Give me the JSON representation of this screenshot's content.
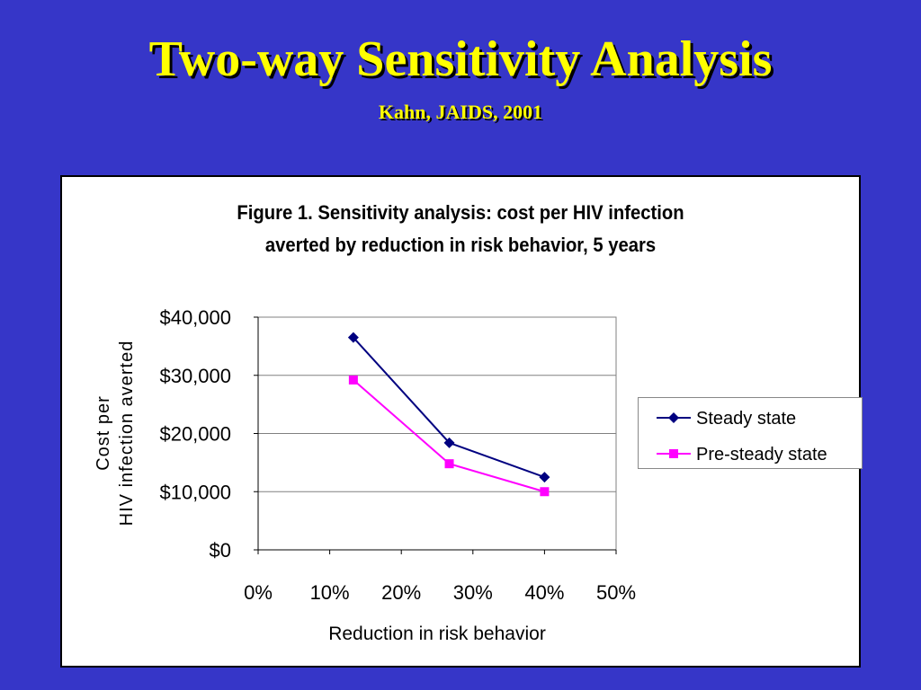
{
  "slide": {
    "title": "Two-way Sensitivity Analysis",
    "subtitle": "Kahn, JAIDS, 2001"
  },
  "chart_data": {
    "type": "line",
    "title_lines": [
      "Figure 1. Sensitivity analysis: cost per HIV infection",
      "averted by reduction in risk behavior, 5 years"
    ],
    "xlabel": "Reduction in risk behavior",
    "ylabel_lines": [
      "Cost per",
      "HIV infection averted"
    ],
    "xlim": [
      0,
      50
    ],
    "ylim": [
      0,
      40000
    ],
    "x_ticks": [
      "0%",
      "10%",
      "20%",
      "30%",
      "40%",
      "50%"
    ],
    "y_ticks": [
      "$0",
      "$10,000",
      "$20,000",
      "$30,000",
      "$40,000"
    ],
    "x_tick_values": [
      0,
      10,
      20,
      30,
      40,
      50
    ],
    "y_tick_values": [
      0,
      10000,
      20000,
      30000,
      40000
    ],
    "grid": "horizontal",
    "legend_position": "right",
    "series": [
      {
        "name": "Steady state",
        "color": "#000080",
        "marker": "diamond",
        "x": [
          13.3,
          26.7,
          40
        ],
        "y": [
          36500,
          18400,
          12500
        ]
      },
      {
        "name": "Pre-steady state",
        "color": "#ff00ff",
        "marker": "square",
        "x": [
          13.3,
          26.7,
          40
        ],
        "y": [
          29200,
          14800,
          10000
        ]
      }
    ]
  }
}
